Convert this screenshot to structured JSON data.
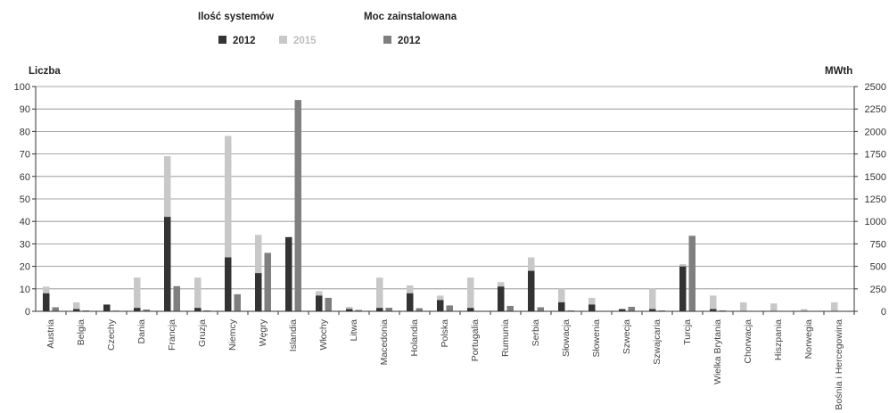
{
  "chart_data": {
    "type": "bar",
    "legend": {
      "group_left_title": "Ilość systemów",
      "group_right_title": "Moc zainstalowana"
    },
    "y_left": {
      "title": "Liczba",
      "range": [
        0,
        100
      ],
      "ticks": [
        0,
        10,
        20,
        30,
        40,
        50,
        60,
        70,
        80,
        90,
        100
      ]
    },
    "y_right": {
      "title": "MWth",
      "range": [
        0,
        2500
      ],
      "ticks": [
        0,
        250,
        500,
        750,
        1000,
        1250,
        1500,
        1750,
        2000,
        2250,
        2500
      ]
    },
    "grid": true,
    "categories": [
      "Austria",
      "Belgia",
      "Czechy",
      "Dania",
      "Francja",
      "Gruzja",
      "Niemcy",
      "Węgry",
      "Islandia",
      "Włochy",
      "Litwa",
      "Macedonia",
      "Holandia",
      "Polska",
      "Portugalia",
      "Rumunia",
      "Serbia",
      "Słowacja",
      "Słowenia",
      "Szwecja",
      "Szwajcaria",
      "Turcja",
      "Wielka Brytania",
      "Chorwacja",
      "Hiszpania",
      "Norwegia",
      "Bośnia i Hercegowina"
    ],
    "series": [
      {
        "name": "2012",
        "group": "Ilość systemów",
        "axis": "left",
        "color": "#333333",
        "values": [
          8,
          1,
          3,
          1.5,
          42,
          1.5,
          24,
          17,
          33,
          7,
          1,
          1.5,
          8,
          5,
          1.5,
          11,
          18,
          4,
          3,
          1,
          1,
          20,
          1,
          0,
          0,
          0,
          0
        ]
      },
      {
        "name": "2015",
        "group": "Ilość systemów",
        "axis": "left",
        "color": "#c8c8c8",
        "values": [
          11,
          4,
          3,
          15,
          69,
          15,
          78,
          34,
          33,
          9,
          2,
          15,
          11.5,
          7,
          15,
          13,
          24,
          10,
          6,
          1,
          10,
          21,
          7,
          4,
          3.5,
          1,
          4
        ]
      },
      {
        "name": "2012",
        "group": "Moc zainstalowana",
        "axis": "right",
        "color": "#7f7f7f",
        "values": [
          45,
          10,
          8,
          20,
          280,
          10,
          190,
          650,
          2350,
          150,
          15,
          40,
          35,
          65,
          5,
          60,
          45,
          10,
          5,
          50,
          10,
          840,
          10,
          0,
          0,
          0,
          0
        ]
      }
    ]
  }
}
